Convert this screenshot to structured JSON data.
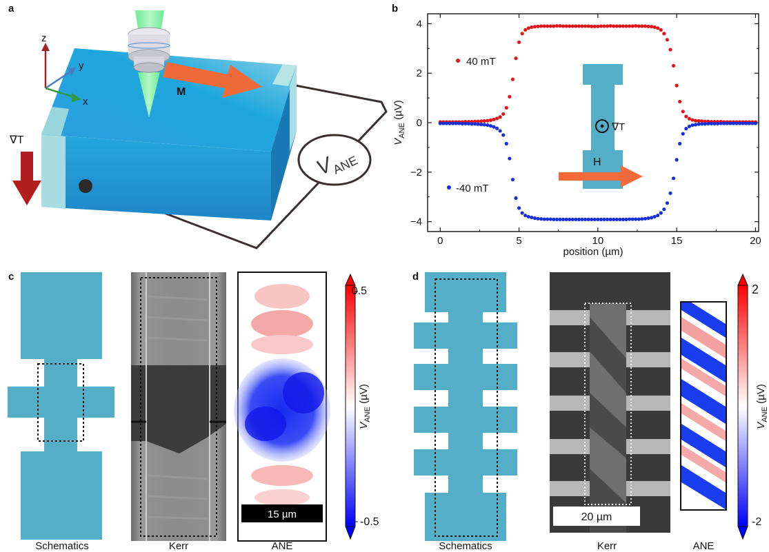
{
  "panels": {
    "a": {
      "label": "a",
      "axes": {
        "z": "z",
        "y": "y",
        "x": "x"
      },
      "grad_label": "∇T",
      "m_label": "M",
      "voltmeter_label": "V",
      "voltmeter_sub": "ANE"
    },
    "b": {
      "label": "b",
      "inset_grad_label": "∇T",
      "inset_field_label": "H"
    },
    "c": {
      "label": "c",
      "captions": [
        "Schematics",
        "Kerr",
        "ANE"
      ],
      "scalebar": "15 µm",
      "colorbar": {
        "max": "0.5",
        "min": "-0.5",
        "label_v": "V",
        "label_sub": "ANE",
        "label_unit": " (µV)"
      }
    },
    "d": {
      "label": "d",
      "captions": [
        "Schematics",
        "Kerr",
        "ANE"
      ],
      "scalebar": "20 µm",
      "colorbar": {
        "max": "2",
        "min": "-2",
        "label_v": "V",
        "label_sub": "ANE",
        "label_unit": " (µV)"
      }
    }
  },
  "colors": {
    "device": "#55aec8",
    "red_series": "#e0161c",
    "blue_series": "#1530d8",
    "arrow_orange": "#f26a3a",
    "grad_arrow": "#b01e1e"
  },
  "chart_data": {
    "type": "scatter",
    "xlabel": "position (µm)",
    "ylabel_main": "V",
    "ylabel_sub": "ANE",
    "ylabel_unit": " (µV)",
    "xlim": [
      -0.8,
      20.2
    ],
    "ylim": [
      -4.4,
      4.4
    ],
    "xticks": [
      0,
      5,
      10,
      15,
      20
    ],
    "yticks": [
      -4,
      -2,
      0,
      2,
      4
    ],
    "xtick_labels": [
      "0",
      "5",
      "10",
      "15",
      "20"
    ],
    "ytick_labels": [
      "−4",
      "−2",
      "0",
      "2",
      "4"
    ],
    "series": [
      {
        "name": "40 mT",
        "color": "#e0161c",
        "sign": 1,
        "x": [
          0,
          0.2,
          0.4,
          0.6,
          0.8,
          1,
          1.2,
          1.4,
          1.6,
          1.8,
          2,
          2.2,
          2.4,
          2.6,
          2.8,
          3,
          3.2,
          3.4,
          3.6,
          3.8,
          4,
          4.2,
          4.4,
          4.6,
          4.8,
          5,
          5.2,
          5.4,
          5.6,
          5.8,
          6,
          6.2,
          6.4,
          6.6,
          6.8,
          7,
          7.2,
          7.4,
          7.6,
          7.8,
          8,
          8.2,
          8.4,
          8.6,
          8.8,
          9,
          9.2,
          9.4,
          9.6,
          9.8,
          10,
          10.2,
          10.4,
          10.6,
          10.8,
          11,
          11.2,
          11.4,
          11.6,
          11.8,
          12,
          12.2,
          12.4,
          12.6,
          12.8,
          13,
          13.2,
          13.4,
          13.6,
          13.8,
          14,
          14.2,
          14.4,
          14.6,
          14.8,
          15,
          15.2,
          15.4,
          15.6,
          15.8,
          16,
          16.2,
          16.4,
          16.6,
          16.8,
          17,
          17.2,
          17.4,
          17.6,
          17.8,
          18,
          18.2,
          18.4,
          18.6,
          18.8,
          19,
          19.2,
          19.4,
          19.6,
          19.8,
          20
        ],
        "y": [
          0.03,
          0.03,
          0.03,
          0.03,
          0.03,
          0.03,
          0.03,
          0.03,
          0.04,
          0.04,
          0.04,
          0.05,
          0.05,
          0.06,
          0.07,
          0.08,
          0.1,
          0.13,
          0.17,
          0.23,
          0.35,
          0.6,
          1.05,
          1.75,
          2.6,
          3.25,
          3.6,
          3.75,
          3.82,
          3.86,
          3.88,
          3.89,
          3.9,
          3.9,
          3.9,
          3.9,
          3.9,
          3.91,
          3.91,
          3.9,
          3.9,
          3.9,
          3.9,
          3.9,
          3.9,
          3.9,
          3.9,
          3.9,
          3.89,
          3.89,
          3.89,
          3.9,
          3.9,
          3.9,
          3.91,
          3.9,
          3.9,
          3.9,
          3.9,
          3.9,
          3.9,
          3.9,
          3.91,
          3.9,
          3.9,
          3.9,
          3.89,
          3.88,
          3.86,
          3.82,
          3.75,
          3.6,
          3.35,
          2.95,
          2.3,
          1.5,
          0.85,
          0.45,
          0.25,
          0.16,
          0.11,
          0.08,
          0.07,
          0.06,
          0.05,
          0.05,
          0.04,
          0.04,
          0.04,
          0.04,
          0.03,
          0.03,
          0.03,
          0.03,
          0.03,
          0.03,
          0.03,
          0.03,
          0.03,
          0.03,
          0.03
        ]
      },
      {
        "name": "-40 mT",
        "color": "#1530d8",
        "sign": -1,
        "x": [
          0,
          0.2,
          0.4,
          0.6,
          0.8,
          1,
          1.2,
          1.4,
          1.6,
          1.8,
          2,
          2.2,
          2.4,
          2.6,
          2.8,
          3,
          3.2,
          3.4,
          3.6,
          3.8,
          4,
          4.2,
          4.4,
          4.6,
          4.8,
          5,
          5.2,
          5.4,
          5.6,
          5.8,
          6,
          6.2,
          6.4,
          6.6,
          6.8,
          7,
          7.2,
          7.4,
          7.6,
          7.8,
          8,
          8.2,
          8.4,
          8.6,
          8.8,
          9,
          9.2,
          9.4,
          9.6,
          9.8,
          10,
          10.2,
          10.4,
          10.6,
          10.8,
          11,
          11.2,
          11.4,
          11.6,
          11.8,
          12,
          12.2,
          12.4,
          12.6,
          12.8,
          13,
          13.2,
          13.4,
          13.6,
          13.8,
          14,
          14.2,
          14.4,
          14.6,
          14.8,
          15,
          15.2,
          15.4,
          15.6,
          15.8,
          16,
          16.2,
          16.4,
          16.6,
          16.8,
          17,
          17.2,
          17.4,
          17.6,
          17.8,
          18,
          18.2,
          18.4,
          18.6,
          18.8,
          19,
          19.2,
          19.4,
          19.6,
          19.8,
          20
        ],
        "y": [
          -0.03,
          -0.03,
          -0.03,
          -0.03,
          -0.03,
          -0.03,
          -0.03,
          -0.04,
          -0.04,
          -0.04,
          -0.05,
          -0.05,
          -0.06,
          -0.07,
          -0.08,
          -0.1,
          -0.13,
          -0.17,
          -0.23,
          -0.33,
          -0.5,
          -0.85,
          -1.45,
          -2.3,
          -3.05,
          -3.45,
          -3.65,
          -3.75,
          -3.8,
          -3.83,
          -3.86,
          -3.88,
          -3.89,
          -3.9,
          -3.9,
          -3.9,
          -3.91,
          -3.91,
          -3.91,
          -3.91,
          -3.91,
          -3.91,
          -3.91,
          -3.91,
          -3.91,
          -3.91,
          -3.91,
          -3.91,
          -3.91,
          -3.91,
          -3.91,
          -3.91,
          -3.91,
          -3.91,
          -3.91,
          -3.91,
          -3.91,
          -3.91,
          -3.91,
          -3.91,
          -3.9,
          -3.9,
          -3.9,
          -3.9,
          -3.89,
          -3.88,
          -3.86,
          -3.84,
          -3.8,
          -3.75,
          -3.65,
          -3.5,
          -3.25,
          -2.85,
          -2.25,
          -1.5,
          -0.85,
          -0.45,
          -0.24,
          -0.15,
          -0.1,
          -0.08,
          -0.06,
          -0.05,
          -0.05,
          -0.04,
          -0.04,
          -0.04,
          -0.04,
          -0.03,
          -0.03,
          -0.03,
          -0.03,
          -0.03,
          -0.03,
          -0.03,
          -0.03,
          -0.03,
          -0.03,
          -0.03,
          -0.03
        ]
      }
    ]
  }
}
